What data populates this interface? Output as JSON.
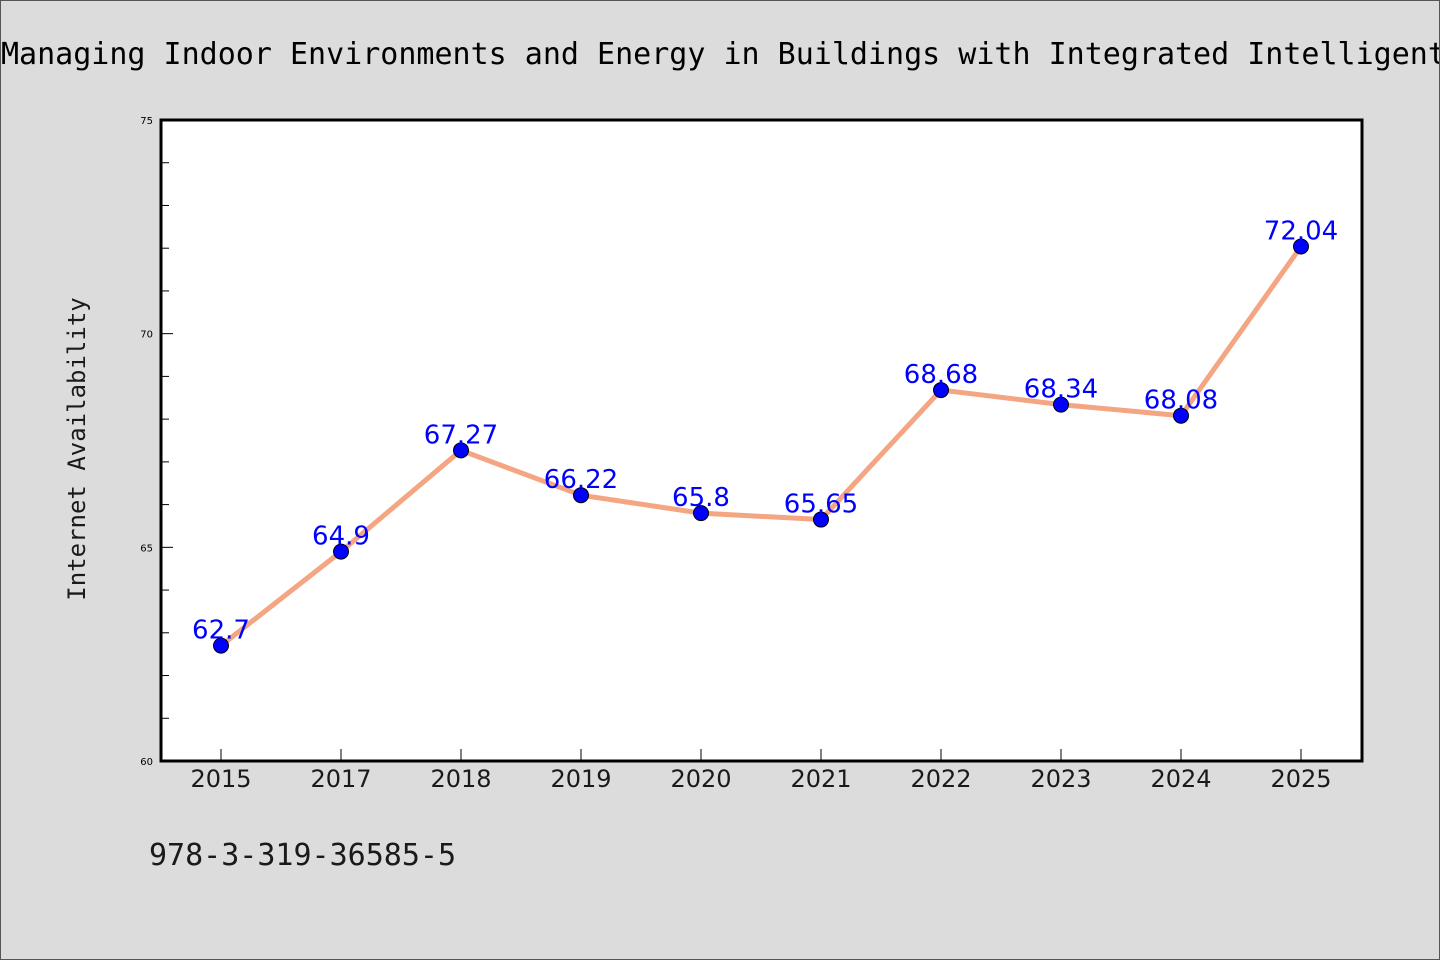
{
  "chart_data": {
    "type": "line",
    "title": "Managing Indoor Environments and Energy in Buildings with Integrated Intelligent",
    "xlabel": "",
    "ylabel": "Internet Availability",
    "categories": [
      "2015",
      "2017",
      "2018",
      "2019",
      "2020",
      "2021",
      "2022",
      "2023",
      "2024",
      "2025"
    ],
    "series": [
      {
        "values": [
          62.7,
          64.9,
          67.27,
          66.22,
          65.8,
          65.65,
          68.68,
          68.34,
          68.08,
          72.04
        ],
        "data_labels": [
          "62.7",
          "64.9",
          "67.27",
          "66.22",
          "65.8",
          "65.65",
          "68.68",
          "68.34",
          "68.08",
          "72.04"
        ]
      }
    ],
    "ylim": [
      60,
      75
    ],
    "yticks": [
      "60",
      "65",
      "70",
      "75"
    ],
    "grid": false,
    "legend": "none",
    "footnote": "978-3-319-36585-5",
    "colors": {
      "background": "#dcdcdc",
      "plot_background": "#ffffff",
      "line": "#f4a582",
      "marker": "#0000ff",
      "data_label": "#0000ff"
    }
  }
}
